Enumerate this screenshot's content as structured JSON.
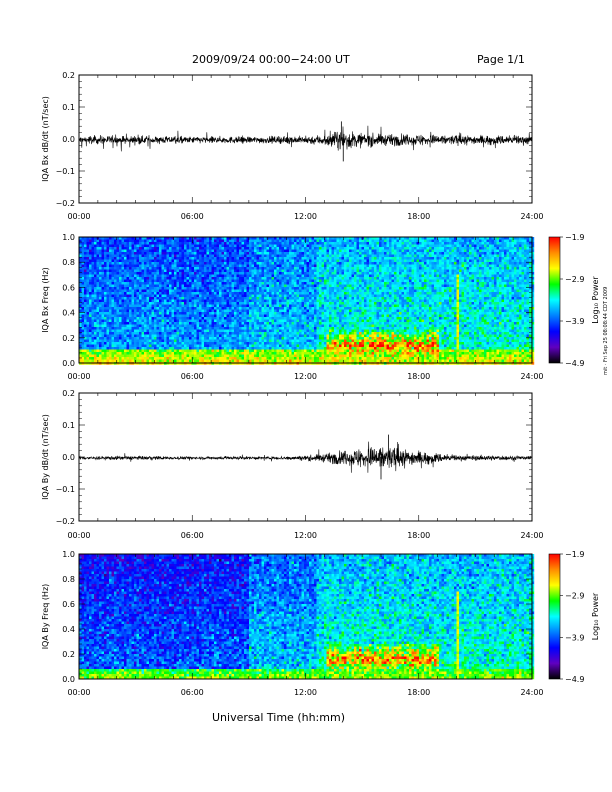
{
  "header": {
    "title": "2009/09/24  00:00−24:00 UT",
    "page": "Page 1/1"
  },
  "x_axis_title": "Universal Time (hh:mm)",
  "side_stamp": "mit · Fri Sep 25 08:08:44 CDT 2009",
  "colorbar": {
    "label": "Log₁₀ Power",
    "ticks": [
      "−1.9",
      "−2.9",
      "−3.9",
      "−4.9"
    ],
    "colors": [
      "#ff0000",
      "#ff8c00",
      "#ffff00",
      "#00ff00",
      "#00ffff",
      "#0080ff",
      "#0000ff",
      "#6000c0",
      "#000000"
    ]
  },
  "chart_data": [
    {
      "type": "line",
      "ylabel": "IQA Bx dB/dt (nT/sec)",
      "xlim": [
        0,
        24
      ],
      "ylim": [
        -0.2,
        0.2
      ],
      "x_tick_labels": [
        "00:00",
        "06:00",
        "12:00",
        "18:00",
        "24:00"
      ],
      "y_tick_labels": [
        "0.2",
        "0.1",
        "0.0",
        "−0.1",
        "−0.2"
      ],
      "series": [
        {
          "x": [
            0,
            2,
            4,
            6,
            8,
            10,
            12,
            13,
            14,
            15,
            16,
            17,
            18,
            20,
            22,
            24
          ],
          "envelope": [
            0.015,
            0.015,
            0.013,
            0.012,
            0.012,
            0.012,
            0.014,
            0.02,
            0.035,
            0.025,
            0.02,
            0.02,
            0.02,
            0.017,
            0.017,
            0.016
          ],
          "peak": {
            "x": 13.9,
            "value": 0.055
          },
          "trough": {
            "x": 14.0,
            "value": -0.07
          }
        }
      ]
    },
    {
      "type": "heatmap",
      "ylabel": "IQA Bx Freq (Hz)",
      "xlim": [
        0,
        24
      ],
      "ylim": [
        0,
        1.0
      ],
      "x_tick_labels": [
        "00:00",
        "06:00",
        "12:00",
        "18:00",
        "24:00"
      ],
      "y_tick_labels": [
        "1.0",
        "0.8",
        "0.6",
        "0.4",
        "0.2",
        "0.0"
      ],
      "color_scale": [
        -4.9,
        -1.9
      ],
      "features": [
        {
          "kind": "low-frequency band",
          "freq_max_hz": 0.12,
          "level": -2.6
        },
        {
          "kind": "enhanced band",
          "time_start_h": 13,
          "time_end_h": 19,
          "freq_hz": 0.15,
          "level": -2.0
        },
        {
          "kind": "vertical line",
          "time_h": 20.0,
          "level": -2.7
        }
      ]
    },
    {
      "type": "line",
      "ylabel": "IQA By dB/dt (nT/sec)",
      "xlim": [
        0,
        24
      ],
      "ylim": [
        -0.2,
        0.2
      ],
      "x_tick_labels": [
        "00:00",
        "06:00",
        "12:00",
        "18:00",
        "24:00"
      ],
      "y_tick_labels": [
        "0.2",
        "0.1",
        "0.0",
        "−0.1",
        "−0.2"
      ],
      "series": [
        {
          "x": [
            0,
            2,
            4,
            6,
            8,
            10,
            12,
            13,
            14,
            15,
            16,
            17,
            18,
            20,
            22,
            24
          ],
          "envelope": [
            0.006,
            0.007,
            0.006,
            0.005,
            0.005,
            0.005,
            0.008,
            0.015,
            0.025,
            0.035,
            0.045,
            0.035,
            0.025,
            0.01,
            0.008,
            0.007
          ],
          "peak": {
            "x": 16.4,
            "value": 0.07
          },
          "trough": {
            "x": 16.0,
            "value": -0.07
          }
        }
      ]
    },
    {
      "type": "heatmap",
      "ylabel": "IQA By Freq (Hz)",
      "xlim": [
        0,
        24
      ],
      "ylim": [
        0,
        1.0
      ],
      "x_tick_labels": [
        "00:00",
        "06:00",
        "12:00",
        "18:00",
        "24:00"
      ],
      "y_tick_labels": [
        "1.0",
        "0.8",
        "0.6",
        "0.4",
        "0.2",
        "0.0"
      ],
      "color_scale": [
        -4.9,
        -1.9
      ],
      "features": [
        {
          "kind": "low-frequency band",
          "freq_max_hz": 0.08,
          "level": -2.8
        },
        {
          "kind": "enhanced band",
          "time_start_h": 13,
          "time_end_h": 19,
          "freq_hz": 0.16,
          "level": -2.0
        },
        {
          "kind": "vertical line",
          "time_h": 20.0,
          "level": -2.7
        }
      ]
    }
  ]
}
